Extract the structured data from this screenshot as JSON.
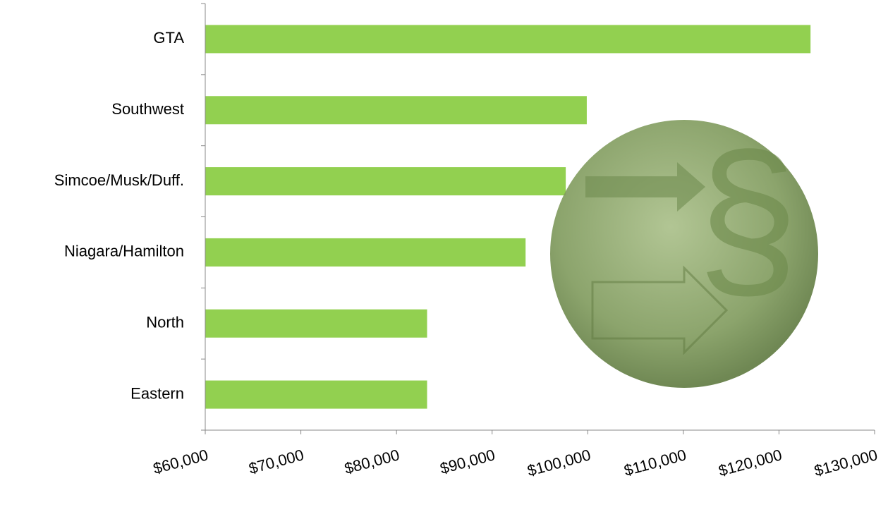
{
  "chart_data": {
    "type": "bar",
    "orientation": "horizontal",
    "categories": [
      "GTA",
      "Southwest",
      "Simcoe/Musk/Duff.",
      "Niagara/Hamilton",
      "North",
      "Eastern"
    ],
    "values": [
      123300,
      99900,
      97700,
      93500,
      83200,
      83200
    ],
    "color": "#92d050",
    "xlim": [
      60000,
      130000
    ],
    "xticks": [
      {
        "value": 60000,
        "label": "$60,000"
      },
      {
        "value": 70000,
        "label": "$70,000"
      },
      {
        "value": 80000,
        "label": "$80,000"
      },
      {
        "value": 90000,
        "label": "$90,000"
      },
      {
        "value": 100000,
        "label": "$100,000"
      },
      {
        "value": 110000,
        "label": "$110,000"
      },
      {
        "value": 120000,
        "label": "$120,000"
      },
      {
        "value": 130000,
        "label": "$130,000"
      }
    ],
    "grid": false
  }
}
